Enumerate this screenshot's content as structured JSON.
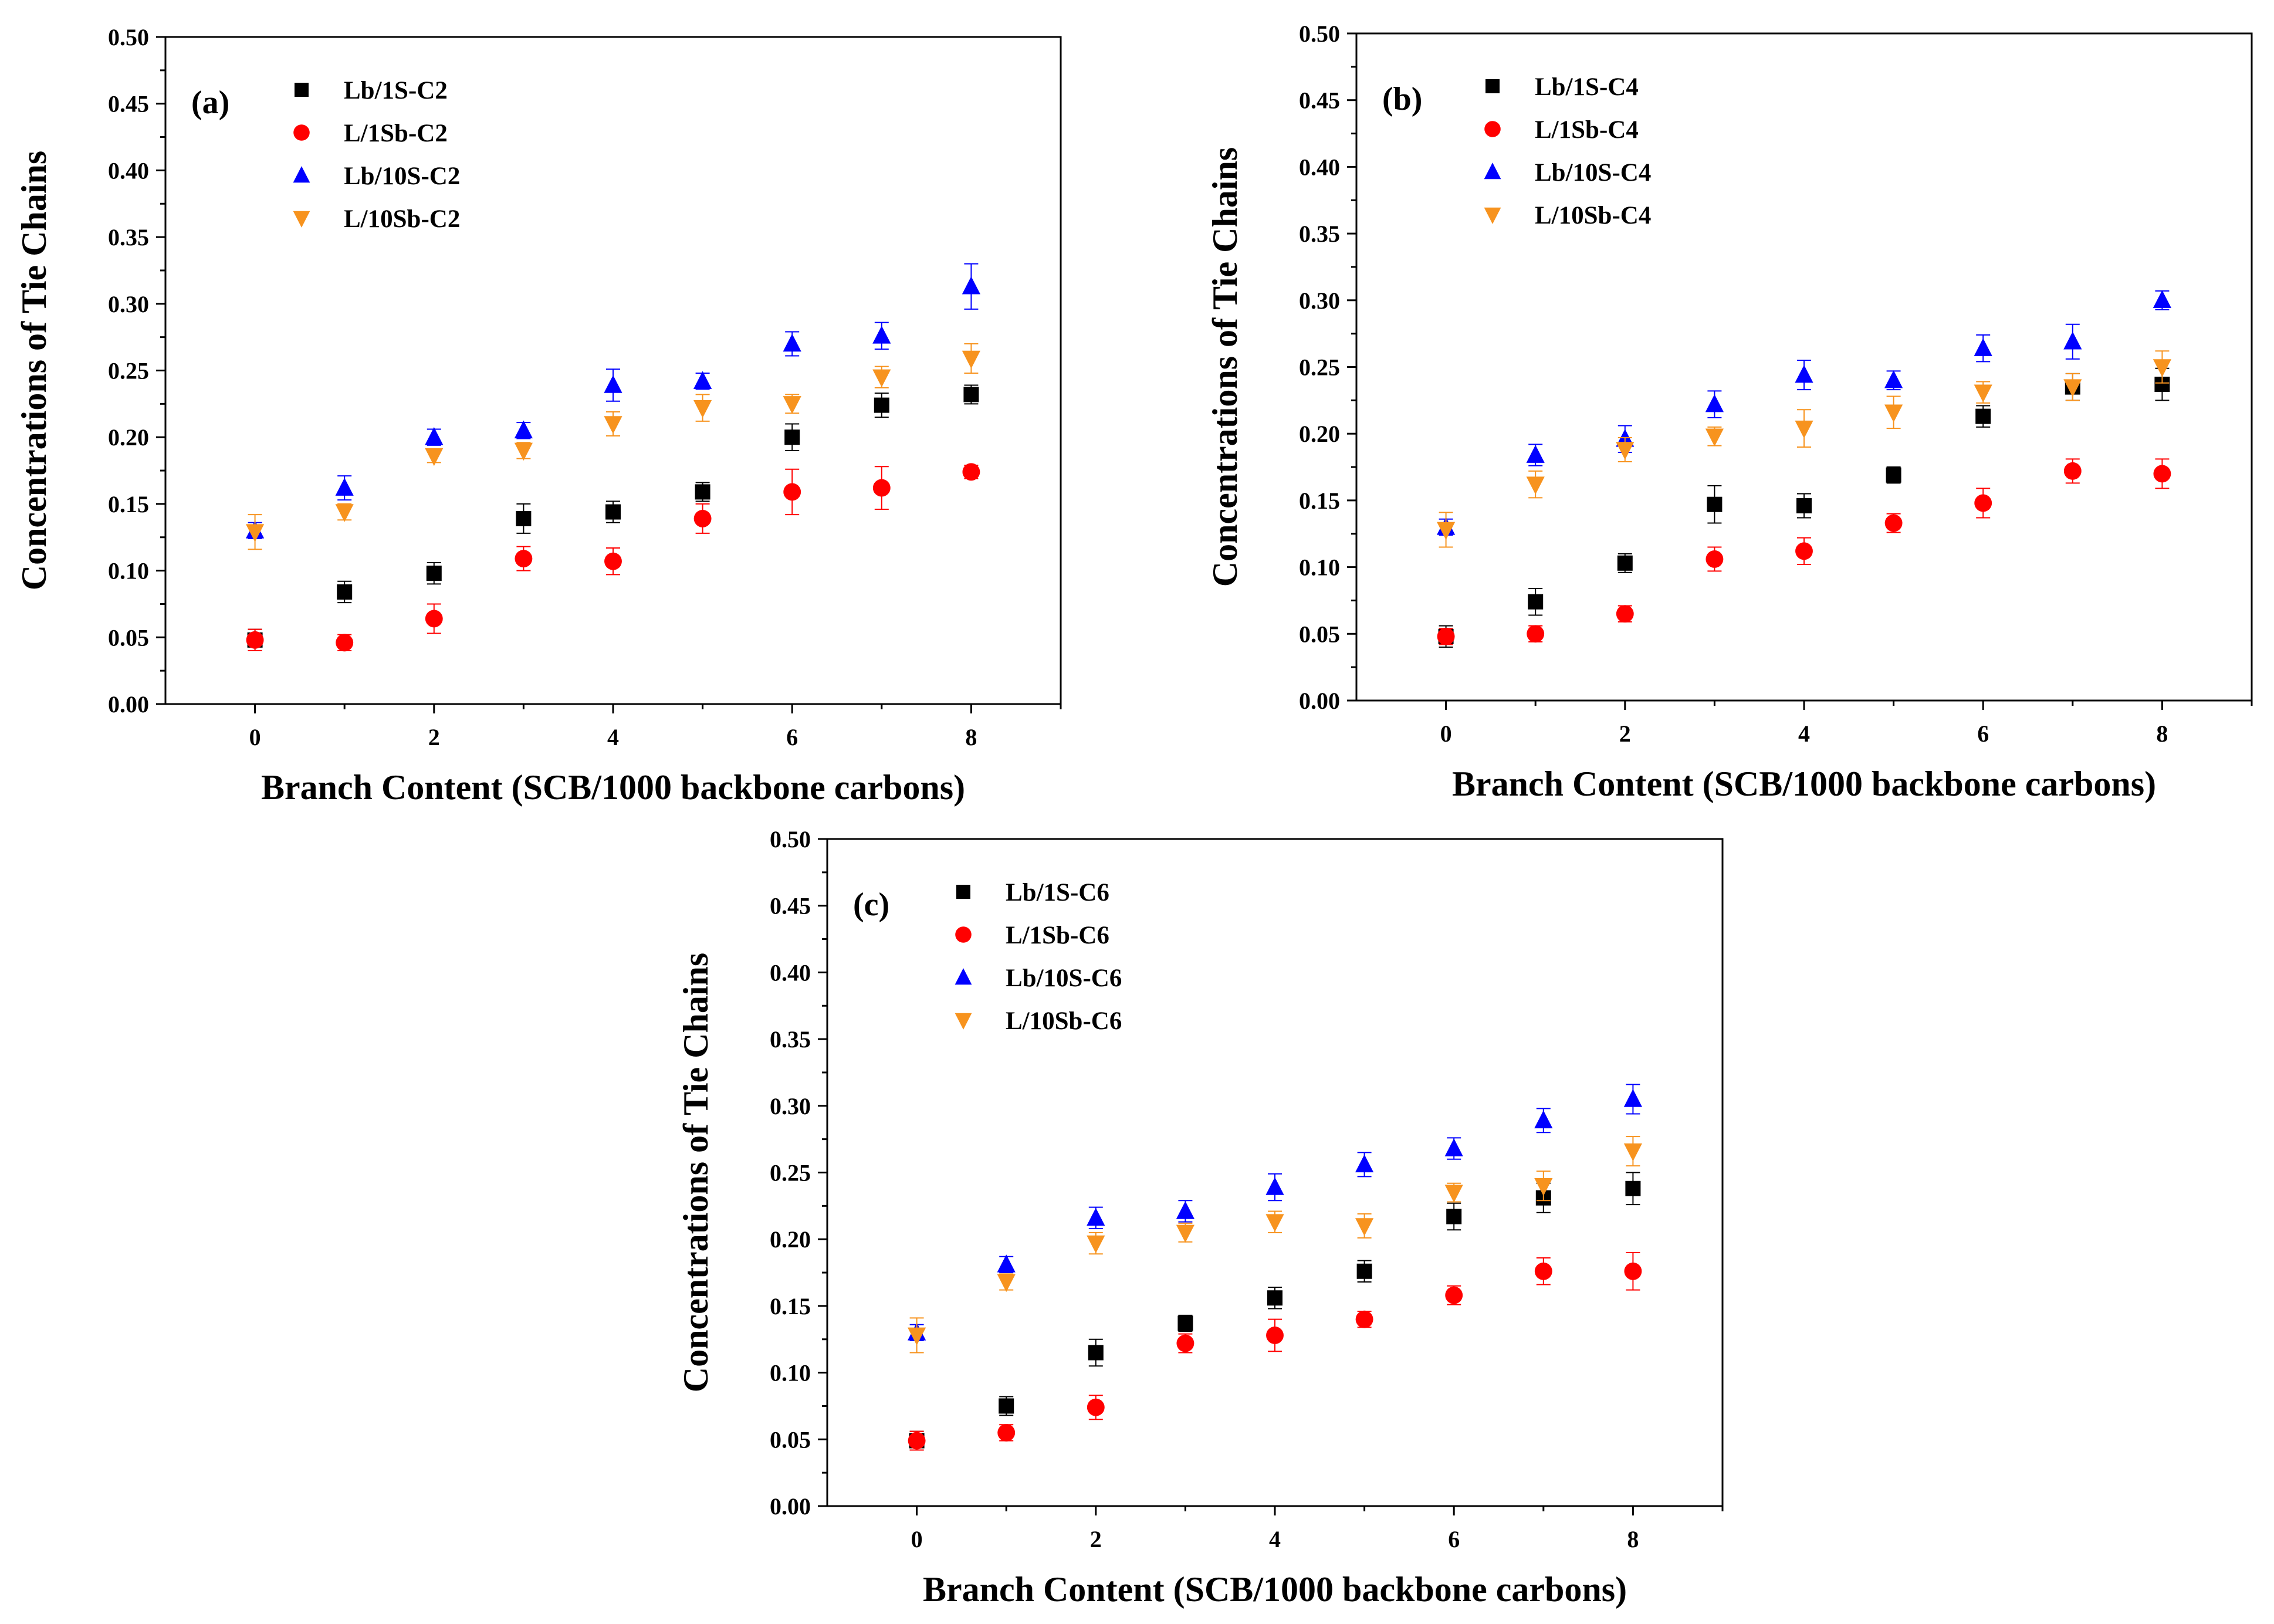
{
  "chart_data": [
    {
      "type": "scatter",
      "panel_label": "(a)",
      "xlabel": "Branch Content (SCB/1000 backbone carbons)",
      "ylabel": "Concentrations of Tie Chains",
      "xlim": [
        -1,
        9
      ],
      "ylim": [
        0,
        0.5
      ],
      "x_ticks": [
        "0",
        "2",
        "4",
        "6",
        "8"
      ],
      "y_ticks": [
        "0.00",
        "0.05",
        "0.10",
        "0.15",
        "0.20",
        "0.25",
        "0.30",
        "0.35",
        "0.40",
        "0.45",
        "0.50"
      ],
      "legend_position": "top-left",
      "x": [
        0,
        1,
        2,
        3,
        4,
        5,
        6,
        7,
        8
      ],
      "series": [
        {
          "name": "Lb/1S-C2",
          "color": "#000000",
          "marker": "square",
          "values": [
            0.048,
            0.084,
            0.098,
            0.139,
            0.144,
            0.159,
            0.2,
            0.224,
            0.232
          ],
          "errors": [
            0.008,
            0.008,
            0.008,
            0.011,
            0.008,
            0.007,
            0.01,
            0.009,
            0.007
          ]
        },
        {
          "name": "L/1Sb-C2",
          "color": "#ff0000",
          "marker": "circle",
          "values": [
            0.048,
            0.046,
            0.064,
            0.109,
            0.107,
            0.139,
            0.159,
            0.162,
            0.174
          ],
          "errors": [
            0.008,
            0.006,
            0.011,
            0.009,
            0.01,
            0.011,
            0.017,
            0.016,
            0.005
          ]
        },
        {
          "name": "Lb/10S-C2",
          "color": "#0000ff",
          "marker": "triangle-up",
          "values": [
            0.13,
            0.162,
            0.2,
            0.205,
            0.239,
            0.242,
            0.27,
            0.276,
            0.313
          ],
          "errors": [
            0.006,
            0.009,
            0.006,
            0.006,
            0.012,
            0.006,
            0.009,
            0.01,
            0.017
          ]
        },
        {
          "name": "L/10Sb-C2",
          "color": "#f7931e",
          "marker": "triangle-down",
          "values": [
            0.129,
            0.144,
            0.186,
            0.19,
            0.21,
            0.222,
            0.225,
            0.245,
            0.259
          ],
          "errors": [
            0.013,
            0.006,
            0.005,
            0.006,
            0.009,
            0.01,
            0.007,
            0.008,
            0.011
          ]
        }
      ]
    },
    {
      "type": "scatter",
      "panel_label": "(b)",
      "xlabel": "Branch Content (SCB/1000 backbone carbons)",
      "ylabel": "Concentrations of Tie Chains",
      "xlim": [
        -1,
        9
      ],
      "ylim": [
        0,
        0.5
      ],
      "x_ticks": [
        "0",
        "2",
        "4",
        "6",
        "8"
      ],
      "y_ticks": [
        "0.00",
        "0.05",
        "0.10",
        "0.15",
        "0.20",
        "0.25",
        "0.30",
        "0.35",
        "0.40",
        "0.45",
        "0.50"
      ],
      "legend_position": "top-left",
      "x": [
        0,
        1,
        2,
        3,
        4,
        5,
        6,
        7,
        8
      ],
      "series": [
        {
          "name": "Lb/1S-C4",
          "color": "#000000",
          "marker": "square",
          "values": [
            0.048,
            0.074,
            0.103,
            0.147,
            0.146,
            0.169,
            0.213,
            0.235,
            0.237
          ],
          "errors": [
            0.008,
            0.01,
            0.007,
            0.014,
            0.009,
            0.006,
            0.008,
            0.01,
            0.012
          ]
        },
        {
          "name": "L/1Sb-C4",
          "color": "#ff0000",
          "marker": "circle",
          "values": [
            0.048,
            0.05,
            0.065,
            0.106,
            0.112,
            0.133,
            0.148,
            0.172,
            0.17
          ],
          "errors": [
            0.006,
            0.006,
            0.006,
            0.009,
            0.01,
            0.007,
            0.011,
            0.009,
            0.011
          ]
        },
        {
          "name": "Lb/10S-C4",
          "color": "#0000ff",
          "marker": "triangle-up",
          "values": [
            0.13,
            0.184,
            0.196,
            0.222,
            0.244,
            0.24,
            0.264,
            0.269,
            0.3
          ],
          "errors": [
            0.006,
            0.008,
            0.01,
            0.01,
            0.011,
            0.007,
            0.01,
            0.013,
            0.007
          ]
        },
        {
          "name": "L/10Sb-C4",
          "color": "#f7931e",
          "marker": "triangle-down",
          "values": [
            0.128,
            0.162,
            0.188,
            0.198,
            0.204,
            0.216,
            0.231,
            0.235,
            0.25
          ],
          "errors": [
            0.013,
            0.01,
            0.009,
            0.007,
            0.014,
            0.012,
            0.008,
            0.01,
            0.012
          ]
        }
      ]
    },
    {
      "type": "scatter",
      "panel_label": "(c)",
      "xlabel": "Branch Content (SCB/1000 backbone carbons)",
      "ylabel": "Concentrations of Tie Chains",
      "xlim": [
        -1,
        9
      ],
      "ylim": [
        0,
        0.5
      ],
      "x_ticks": [
        "0",
        "2",
        "4",
        "6",
        "8"
      ],
      "y_ticks": [
        "0.00",
        "0.05",
        "0.10",
        "0.15",
        "0.20",
        "0.25",
        "0.30",
        "0.35",
        "0.40",
        "0.45",
        "0.50"
      ],
      "legend_position": "top-left",
      "x": [
        0,
        1,
        2,
        3,
        4,
        5,
        6,
        7,
        8
      ],
      "series": [
        {
          "name": "Lb/1S-C6",
          "color": "#000000",
          "marker": "square",
          "values": [
            0.049,
            0.075,
            0.115,
            0.137,
            0.156,
            0.176,
            0.217,
            0.231,
            0.238
          ],
          "errors": [
            0.007,
            0.007,
            0.01,
            0.006,
            0.008,
            0.008,
            0.01,
            0.011,
            0.012
          ]
        },
        {
          "name": "L/1Sb-C6",
          "color": "#ff0000",
          "marker": "circle",
          "values": [
            0.049,
            0.055,
            0.074,
            0.122,
            0.128,
            0.14,
            0.158,
            0.176,
            0.176
          ],
          "errors": [
            0.007,
            0.006,
            0.009,
            0.007,
            0.012,
            0.006,
            0.007,
            0.01,
            0.014
          ]
        },
        {
          "name": "Lb/10S-C6",
          "color": "#0000ff",
          "marker": "triangle-up",
          "values": [
            0.13,
            0.181,
            0.216,
            0.221,
            0.239,
            0.256,
            0.268,
            0.289,
            0.305
          ],
          "errors": [
            0.006,
            0.006,
            0.008,
            0.008,
            0.01,
            0.009,
            0.008,
            0.009,
            0.011
          ]
        },
        {
          "name": "L/10Sb-C6",
          "color": "#f7931e",
          "marker": "triangle-down",
          "values": [
            0.128,
            0.168,
            0.197,
            0.205,
            0.213,
            0.21,
            0.235,
            0.24,
            0.266
          ],
          "errors": [
            0.013,
            0.006,
            0.008,
            0.007,
            0.008,
            0.009,
            0.007,
            0.011,
            0.011
          ]
        }
      ]
    }
  ]
}
